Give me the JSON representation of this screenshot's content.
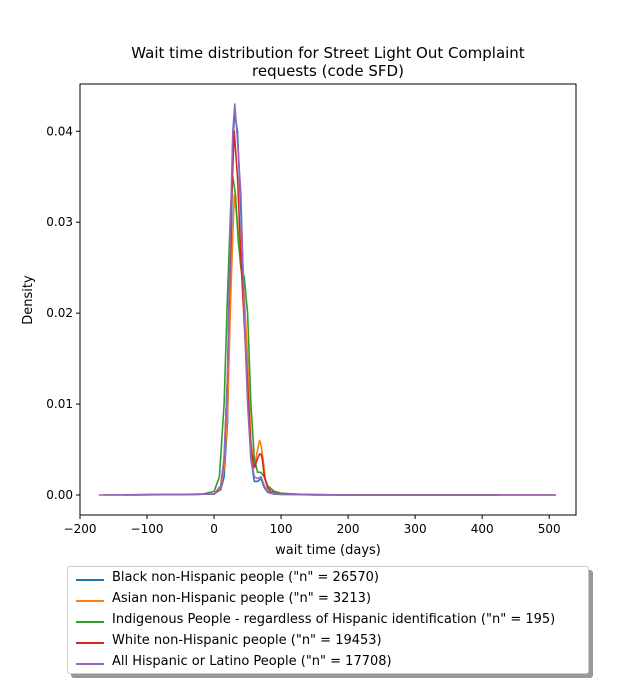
{
  "chart_data": {
    "type": "line",
    "title": "Wait time distribution  for Street Light Out Complaint requests (code SFD)",
    "title_lines": [
      "Wait time distribution  for Street Light Out Complaint",
      "requests (code SFD)"
    ],
    "xlabel": "wait time (days)",
    "ylabel": "Density",
    "xlim": [
      -200,
      540
    ],
    "ylim": [
      -0.0022,
      0.0452
    ],
    "xticks": [
      -200,
      -100,
      0,
      100,
      200,
      300,
      400,
      500
    ],
    "xtick_labels": [
      "−200",
      "−100",
      "0",
      "100",
      "200",
      "300",
      "400",
      "500"
    ],
    "yticks": [
      0.0,
      0.01,
      0.02,
      0.03,
      0.04
    ],
    "ytick_labels": [
      "0.00",
      "0.01",
      "0.02",
      "0.03",
      "0.04"
    ],
    "grid": false,
    "legend_position": "below plot",
    "series": [
      {
        "name": "Black non-Hispanic people (\"n\" = 26570)",
        "color": "#1f77b4",
        "x": [
          -135,
          0,
          10,
          15,
          20,
          25,
          28,
          31,
          35,
          40,
          45,
          50,
          55,
          60,
          65,
          70,
          75,
          80,
          90,
          100,
          200,
          300,
          420
        ],
        "y": [
          0,
          0.0001,
          0.0006,
          0.002,
          0.008,
          0.025,
          0.039,
          0.042,
          0.04,
          0.031,
          0.021,
          0.012,
          0.004,
          0.0015,
          0.0015,
          0.0018,
          0.0008,
          0.0003,
          0.0001,
          5e-05,
          0,
          0,
          0
        ]
      },
      {
        "name": "Asian non-Hispanic people (\"n\" = 3213)",
        "color": "#ff7f0e",
        "x": [
          -130,
          0,
          10,
          15,
          20,
          25,
          30,
          35,
          40,
          45,
          50,
          55,
          60,
          65,
          68,
          70,
          73,
          77,
          82,
          90,
          100,
          150,
          250,
          420
        ],
        "y": [
          0,
          0.0001,
          0.0008,
          0.003,
          0.009,
          0.022,
          0.033,
          0.03,
          0.025,
          0.022,
          0.015,
          0.006,
          0.003,
          0.005,
          0.006,
          0.0055,
          0.004,
          0.0015,
          0.0005,
          0.0002,
          8e-05,
          0,
          0,
          0
        ]
      },
      {
        "name": "Indigenous People - regardless of Hispanic identification (\"n\" = 195)",
        "color": "#2ca02c",
        "x": [
          -120,
          -20,
          0,
          8,
          15,
          20,
          25,
          28,
          32,
          36,
          40,
          45,
          50,
          55,
          60,
          65,
          70,
          75,
          80,
          90,
          100,
          150,
          300,
          425
        ],
        "y": [
          0,
          5e-05,
          0.0004,
          0.002,
          0.01,
          0.022,
          0.032,
          0.035,
          0.033,
          0.028,
          0.025,
          0.024,
          0.02,
          0.01,
          0.004,
          0.0025,
          0.0025,
          0.002,
          0.001,
          0.0004,
          0.0002,
          0,
          0,
          0
        ]
      },
      {
        "name": "White non-Hispanic people (\"n\" = 19453)",
        "color": "#d62728",
        "x": [
          -165,
          0,
          10,
          15,
          20,
          25,
          30,
          35,
          40,
          45,
          50,
          55,
          60,
          65,
          68,
          70,
          72,
          75,
          80,
          85,
          90,
          100,
          200,
          400,
          510
        ],
        "y": [
          0,
          0.0001,
          0.001,
          0.004,
          0.013,
          0.03,
          0.04,
          0.035,
          0.026,
          0.019,
          0.012,
          0.005,
          0.003,
          0.004,
          0.0045,
          0.0045,
          0.004,
          0.002,
          0.0008,
          0.0004,
          0.0003,
          0.0001,
          0,
          0,
          0
        ]
      },
      {
        "name": "All Hispanic or Latino People (\"n\" = 17708)",
        "color": "#9467bd",
        "x": [
          -172,
          0,
          10,
          15,
          20,
          24,
          28,
          31,
          35,
          40,
          45,
          50,
          55,
          60,
          65,
          70,
          75,
          80,
          90,
          100,
          200,
          400,
          510
        ],
        "y": [
          0,
          0.0001,
          0.001,
          0.004,
          0.013,
          0.028,
          0.04,
          0.043,
          0.039,
          0.033,
          0.02,
          0.01,
          0.004,
          0.002,
          0.0018,
          0.002,
          0.001,
          0.0004,
          0.0002,
          0.0001,
          0,
          0,
          0
        ]
      }
    ]
  }
}
